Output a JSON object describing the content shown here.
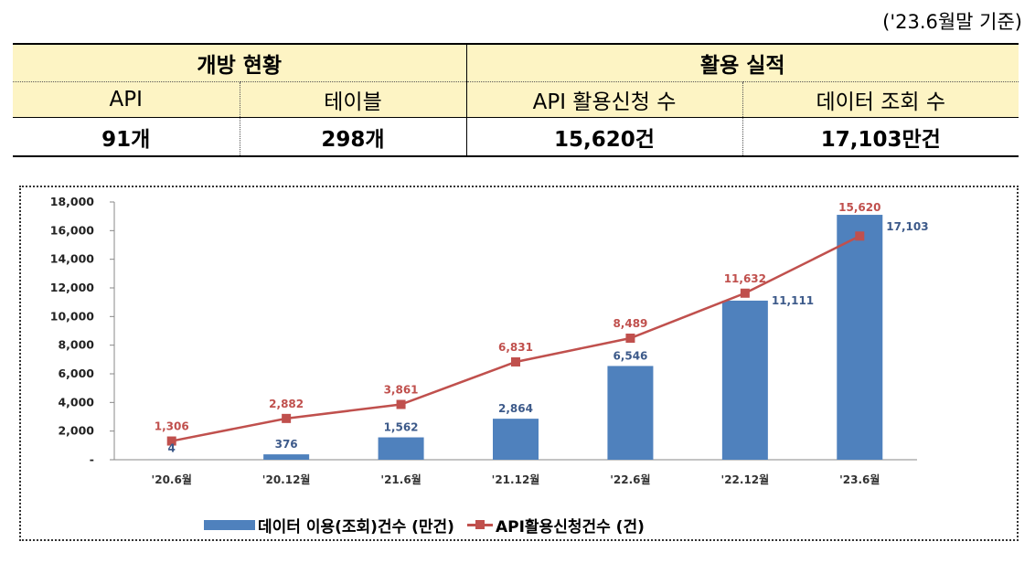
{
  "as_of": "('23.6월말 기준)",
  "table": {
    "group_open": "개방 현황",
    "group_use": "활용 실적",
    "col_api": "API",
    "col_table": "테이블",
    "col_api_requests": "API 활용신청 수",
    "col_data_queries": "데이터 조회 수",
    "val_api": "91개",
    "val_table": "298개",
    "val_api_requests": "15,620건",
    "val_data_queries": "17,103만건"
  },
  "chart_data": {
    "type": "bar",
    "categories": [
      "'20.6월",
      "'20.12월",
      "'21.6월",
      "'21.12월",
      "'22.6월",
      "'22.12월",
      "'23.6월"
    ],
    "ylim": [
      0,
      18000
    ],
    "yticks": [
      "-",
      "2,000",
      "4,000",
      "6,000",
      "8,000",
      "10,000",
      "12,000",
      "14,000",
      "16,000",
      "18,000"
    ],
    "series": [
      {
        "name": "데이터 이용(조회)건수 (만건)",
        "type": "bar",
        "color": "#4f81bd",
        "values": [
          4,
          376,
          1562,
          2864,
          6546,
          11111,
          17103
        ],
        "labels": [
          "4",
          "376",
          "1,562",
          "2,864",
          "6,546",
          "11,111",
          "17,103"
        ]
      },
      {
        "name": "API활용신청건수 (건)",
        "type": "line",
        "color": "#c0504d",
        "values": [
          1306,
          2882,
          3861,
          6831,
          8489,
          11632,
          15620
        ],
        "labels": [
          "1,306",
          "2,882",
          "3,861",
          "6,831",
          "8,489",
          "11,632",
          "15,620"
        ]
      }
    ]
  }
}
